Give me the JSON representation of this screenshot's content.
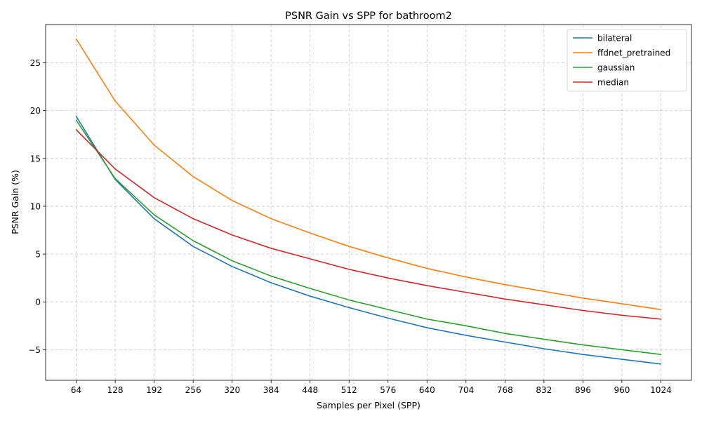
{
  "chart_data": {
    "type": "line",
    "title": "PSNR Gain vs SPP for bathroom2",
    "xlabel": "Samples per Pixel (SPP)",
    "ylabel": "PSNR Gain (%)",
    "x": [
      64,
      128,
      192,
      256,
      320,
      384,
      448,
      512,
      576,
      640,
      704,
      768,
      832,
      896,
      960,
      1024
    ],
    "x_tick_labels": [
      "64",
      "128",
      "192",
      "256",
      "320",
      "384",
      "448",
      "512",
      "576",
      "640",
      "704",
      "768",
      "832",
      "896",
      "960",
      "1024"
    ],
    "y_ticks": [
      -5,
      0,
      5,
      10,
      15,
      20,
      25
    ],
    "y_tick_labels": [
      "−5",
      "0",
      "5",
      "10",
      "15",
      "20",
      "25"
    ],
    "xlim": [
      13.8,
      1074.2
    ],
    "ylim": [
      -8.2,
      29.0
    ],
    "grid": true,
    "legend_position": "upper-right",
    "series": [
      {
        "name": "bilateral",
        "color": "#1f77b4",
        "values": [
          19.4,
          12.8,
          8.7,
          5.8,
          3.7,
          2.0,
          0.6,
          -0.6,
          -1.7,
          -2.7,
          -3.5,
          -4.2,
          -4.9,
          -5.5,
          -6.0,
          -6.5
        ]
      },
      {
        "name": "ffdnet_pretrained",
        "color": "#ff7f0e",
        "values": [
          27.5,
          21.0,
          16.4,
          13.1,
          10.6,
          8.7,
          7.2,
          5.8,
          4.6,
          3.5,
          2.6,
          1.8,
          1.1,
          0.4,
          -0.2,
          -0.8
        ]
      },
      {
        "name": "gaussian",
        "color": "#2ca02c",
        "values": [
          19.0,
          12.9,
          9.1,
          6.4,
          4.3,
          2.7,
          1.4,
          0.2,
          -0.8,
          -1.8,
          -2.5,
          -3.3,
          -3.9,
          -4.5,
          -5.0,
          -5.5
        ]
      },
      {
        "name": "median",
        "color": "#d62728",
        "values": [
          18.0,
          13.9,
          10.9,
          8.7,
          7.0,
          5.6,
          4.5,
          3.4,
          2.5,
          1.7,
          1.0,
          0.3,
          -0.3,
          -0.9,
          -1.4,
          -1.8
        ]
      }
    ]
  }
}
